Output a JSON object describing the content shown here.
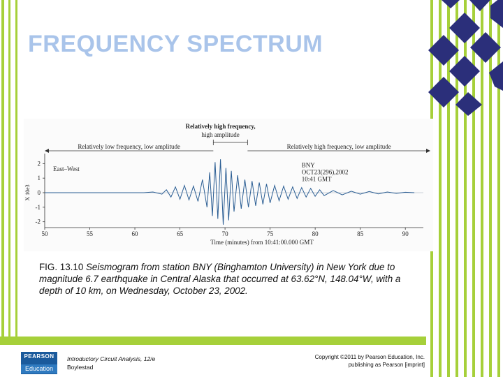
{
  "slide": {
    "title": "FREQUENCY SPECTRUM"
  },
  "chart_data": {
    "type": "line",
    "title": "",
    "xlabel": "Time (minutes) from 10:41:00.000 GMT",
    "ylabel": "X 10e3",
    "xlim": [
      50,
      92
    ],
    "ylim": [
      -2.4,
      2.4
    ],
    "x_ticks": [
      50,
      55,
      60,
      65,
      70,
      75,
      80,
      85,
      90
    ],
    "y_ticks": [
      2,
      1,
      0,
      -1,
      -2
    ],
    "grid": false,
    "series": [
      {
        "name": "East–West",
        "x": [
          50,
          51,
          52,
          53,
          54,
          55,
          56,
          57,
          58,
          59,
          60,
          61,
          62,
          63,
          63.5,
          64,
          64.5,
          65,
          65.5,
          66,
          66.5,
          67,
          67.5,
          68,
          68.3,
          68.6,
          68.9,
          69.2,
          69.5,
          69.8,
          70.1,
          70.4,
          70.7,
          71,
          71.4,
          71.8,
          72.2,
          72.6,
          73,
          73.4,
          73.8,
          74.2,
          74.6,
          75,
          75.5,
          76,
          76.5,
          77,
          77.5,
          78,
          78.5,
          79,
          79.5,
          80,
          80.5,
          81,
          82,
          83,
          84,
          85,
          86,
          87,
          88,
          89,
          90,
          91
        ],
        "y": [
          0,
          0,
          0,
          0,
          0,
          0,
          0,
          0,
          0,
          0,
          0,
          0,
          0.05,
          -0.1,
          0.2,
          -0.3,
          0.4,
          -0.45,
          0.5,
          -0.5,
          0.45,
          -0.6,
          0.9,
          -1.0,
          1.4,
          -1.6,
          2.1,
          -1.8,
          2.3,
          -2.2,
          1.7,
          -1.9,
          1.5,
          -1.3,
          1.2,
          -1.1,
          0.9,
          -1.0,
          0.8,
          -0.9,
          0.7,
          -0.8,
          0.6,
          -0.7,
          0.5,
          -0.55,
          0.45,
          -0.45,
          0.4,
          -0.4,
          0.35,
          -0.3,
          0.3,
          -0.25,
          0.2,
          -0.2,
          0.15,
          -0.15,
          0.1,
          -0.1,
          0.08,
          -0.08,
          0.05,
          -0.05,
          0.03,
          0
        ]
      }
    ],
    "station_label": [
      "BNY",
      "OCT23(296),2002",
      "10:41 GMT"
    ],
    "annotations": [
      {
        "text": "Relatively high frequency,",
        "text2": "high amplitude",
        "x": 69.5
      },
      {
        "text": "Relatively low frequency, low amplitude",
        "x_from": 50,
        "x_to": 68.7
      },
      {
        "text": "Relatively high frequency, low amplitude",
        "x_from": 72.5,
        "x_to": 92
      }
    ]
  },
  "caption": {
    "label": "FIG. 13.10",
    "text": " Seismogram from station BNY (Binghamton University) in New York due to magnitude 6.7 earthquake in Central Alaska that occurred at 63.62°N, 148.04°W, with a depth of 10 km, on Wednesday, October 23, 2002."
  },
  "footer": {
    "logo_top": "PEARSON",
    "logo_bottom": "Education",
    "book_title": "Introductory Circuit Analysis, 12/e",
    "book_author": "Boylestad",
    "copyright_line1": "Copyright ©2011 by Pearson Education, Inc.",
    "copyright_line2": "publishing as Pearson [imprint]"
  },
  "colors": {
    "accent_green": "#a6d03a",
    "accent_navy": "#2b2f7a",
    "title_color": "#a9c4ea",
    "trace_color": "#2a5d93"
  }
}
